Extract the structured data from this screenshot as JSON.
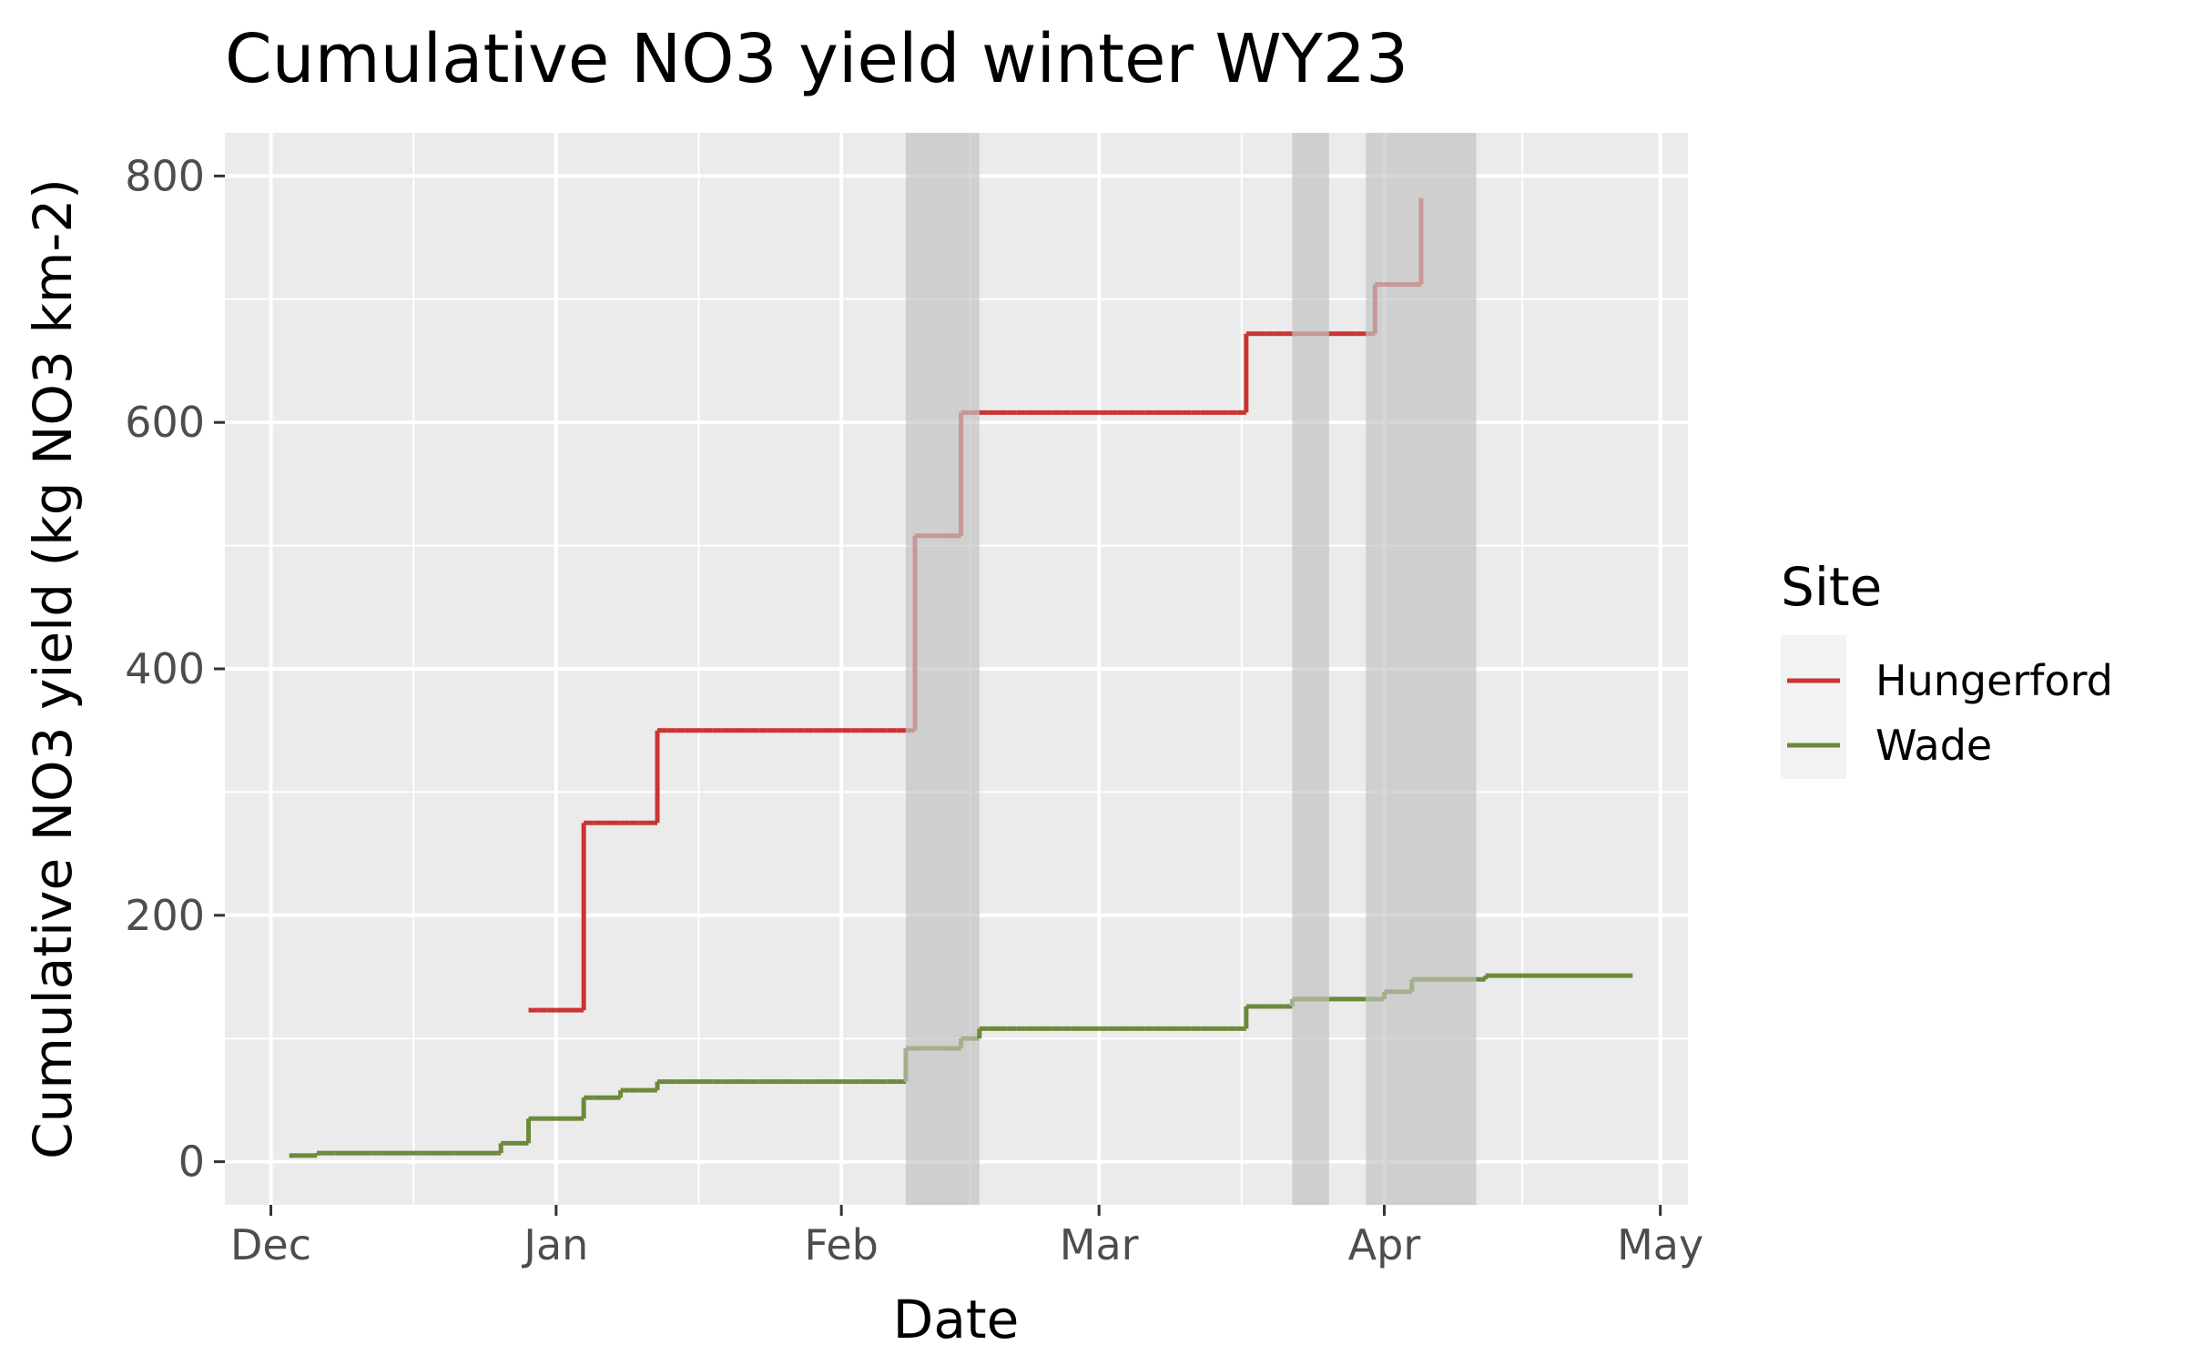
{
  "chart_data": {
    "type": "line",
    "title": "Cumulative NO3 yield winter WY23",
    "xlabel": "Date",
    "ylabel": "Cumulative NO3 yield (kg NO3 km-2)",
    "x_ticks": [
      {
        "date": "2022-12-01",
        "label": "Dec"
      },
      {
        "date": "2023-01-01",
        "label": "Jan"
      },
      {
        "date": "2023-02-01",
        "label": "Feb"
      },
      {
        "date": "2023-03-01",
        "label": "Mar"
      },
      {
        "date": "2023-04-01",
        "label": "Apr"
      },
      {
        "date": "2023-05-01",
        "label": "May"
      }
    ],
    "xlim": [
      "2022-11-26",
      "2023-05-04"
    ],
    "y_ticks": [
      0,
      200,
      400,
      600,
      800
    ],
    "ylim": [
      -35,
      835
    ],
    "grid": true,
    "legend_title": "Site",
    "legend_position": "right",
    "shaded_periods": [
      {
        "start": "2023-02-08",
        "end": "2023-02-16"
      },
      {
        "start": "2023-03-22",
        "end": "2023-03-26"
      },
      {
        "start": "2023-03-30",
        "end": "2023-04-11"
      }
    ],
    "series": [
      {
        "name": "Hungerford",
        "color": "#cc3333",
        "faded_color": "#c89898",
        "steps": [
          {
            "date": "2022-12-29",
            "value": 123
          },
          {
            "date": "2023-01-04",
            "value": 275
          },
          {
            "date": "2023-01-12",
            "value": 350
          },
          {
            "date": "2023-02-09",
            "value": 508
          },
          {
            "date": "2023-02-14",
            "value": 608
          },
          {
            "date": "2023-03-17",
            "value": 672
          },
          {
            "date": "2023-03-31",
            "value": 712
          },
          {
            "date": "2023-04-05",
            "value": 782
          }
        ],
        "end_date": "2023-04-05"
      },
      {
        "name": "Wade",
        "color": "#6b8a3a",
        "faded_color": "#a3b08c",
        "steps": [
          {
            "date": "2022-12-03",
            "value": 5
          },
          {
            "date": "2022-12-06",
            "value": 7
          },
          {
            "date": "2022-12-26",
            "value": 15
          },
          {
            "date": "2022-12-29",
            "value": 35
          },
          {
            "date": "2023-01-04",
            "value": 52
          },
          {
            "date": "2023-01-08",
            "value": 58
          },
          {
            "date": "2023-01-12",
            "value": 65
          },
          {
            "date": "2023-02-08",
            "value": 92
          },
          {
            "date": "2023-02-14",
            "value": 100
          },
          {
            "date": "2023-02-16",
            "value": 108
          },
          {
            "date": "2023-03-17",
            "value": 126
          },
          {
            "date": "2023-03-22",
            "value": 132
          },
          {
            "date": "2023-04-01",
            "value": 138
          },
          {
            "date": "2023-04-04",
            "value": 148
          },
          {
            "date": "2023-04-12",
            "value": 151
          }
        ],
        "end_date": "2023-04-28"
      }
    ]
  }
}
